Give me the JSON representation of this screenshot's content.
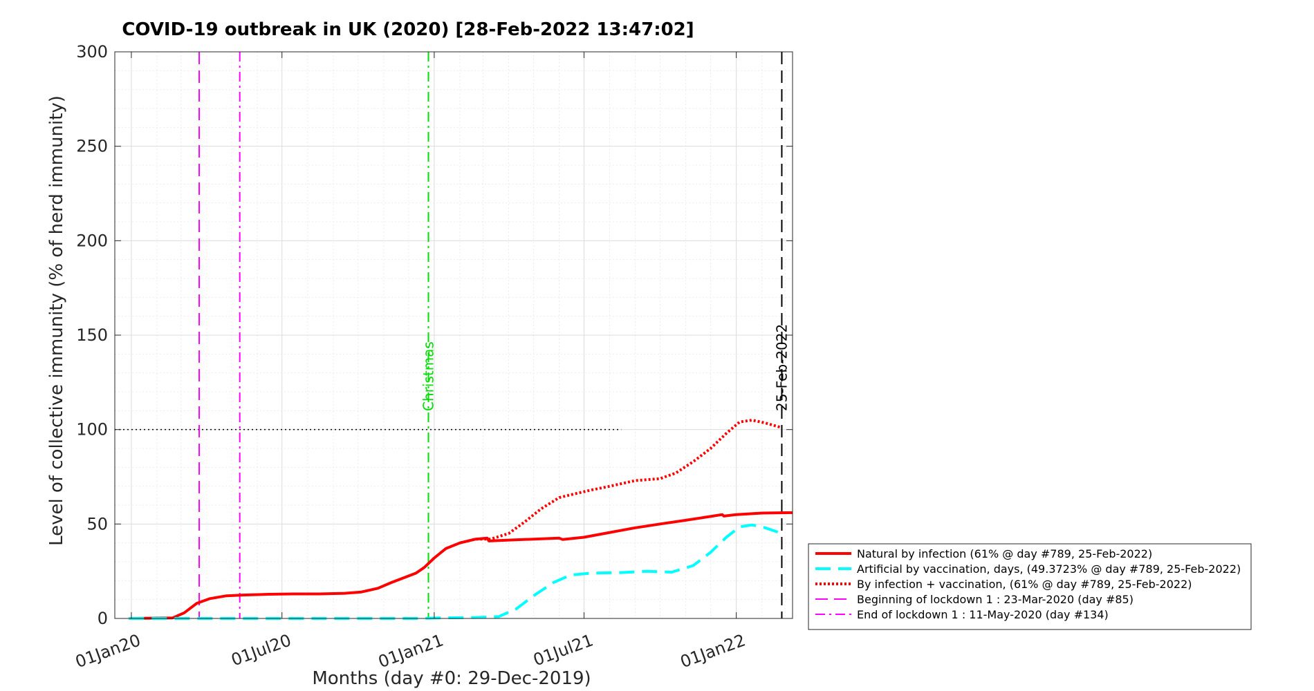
{
  "chart_data": {
    "type": "line",
    "title": "COVID-19 outbreak in UK (2020) [28-Feb-2022 13:47:02]",
    "xlabel": "Months (day #0: 29-Dec-2019)",
    "ylabel": "Level of collective immunity (% of herd immunity)",
    "xlim": [
      "2019-12-12",
      "2022-03-10"
    ],
    "ylim": [
      0,
      300
    ],
    "yticks": [
      0,
      50,
      100,
      150,
      200,
      250,
      300
    ],
    "xticks": [
      {
        "date": "2020-01-01",
        "label": "01Jan20"
      },
      {
        "date": "2020-07-01",
        "label": "01Jul20"
      },
      {
        "date": "2021-01-01",
        "label": "01Jan21"
      },
      {
        "date": "2021-07-01",
        "label": "01Jul21"
      },
      {
        "date": "2022-01-01",
        "label": "01Jan22"
      }
    ],
    "grid": true,
    "legend_position": "outside-right-bottom",
    "series": [
      {
        "name": "Natural by infection (61% @ day #789, 25-Feb-2022)",
        "color": "#ff0000",
        "style": "solid",
        "points": [
          [
            "2019-12-29",
            0
          ],
          [
            "2020-02-20",
            0.3
          ],
          [
            "2020-03-05",
            3
          ],
          [
            "2020-03-20",
            8
          ],
          [
            "2020-04-05",
            10.5
          ],
          [
            "2020-04-25",
            12
          ],
          [
            "2020-05-15",
            12.4
          ],
          [
            "2020-06-15",
            12.8
          ],
          [
            "2020-07-15",
            13
          ],
          [
            "2020-08-15",
            13
          ],
          [
            "2020-09-15",
            13.3
          ],
          [
            "2020-10-05",
            14
          ],
          [
            "2020-10-25",
            16
          ],
          [
            "2020-11-10",
            19
          ],
          [
            "2020-11-25",
            21.5
          ],
          [
            "2020-12-10",
            24
          ],
          [
            "2020-12-20",
            27
          ],
          [
            "2021-01-01",
            32
          ],
          [
            "2021-01-15",
            37
          ],
          [
            "2021-02-01",
            40
          ],
          [
            "2021-02-20",
            42
          ],
          [
            "2021-03-06",
            42.5
          ],
          [
            "2021-03-08",
            41
          ],
          [
            "2021-04-01",
            41.5
          ],
          [
            "2021-05-01",
            42
          ],
          [
            "2021-06-01",
            42.5
          ],
          [
            "2021-06-05",
            41.8
          ],
          [
            "2021-07-01",
            43
          ],
          [
            "2021-08-01",
            45.5
          ],
          [
            "2021-09-01",
            48
          ],
          [
            "2021-10-01",
            50
          ],
          [
            "2021-11-01",
            52
          ],
          [
            "2021-12-01",
            54
          ],
          [
            "2021-12-15",
            55
          ],
          [
            "2021-12-17",
            54.2
          ],
          [
            "2022-01-01",
            55
          ],
          [
            "2022-02-01",
            55.8
          ],
          [
            "2022-03-10",
            56
          ]
        ]
      },
      {
        "name": "Artificial by vaccination, days, (49.3723% @ day #789, 25-Feb-2022)",
        "color": "#00ffff",
        "style": "dashed",
        "points": [
          [
            "2019-12-29",
            0
          ],
          [
            "2020-12-10",
            0
          ],
          [
            "2021-01-10",
            0.3
          ],
          [
            "2021-02-20",
            0.5
          ],
          [
            "2021-03-20",
            1
          ],
          [
            "2021-04-10",
            5
          ],
          [
            "2021-05-01",
            12
          ],
          [
            "2021-05-25",
            19
          ],
          [
            "2021-06-15",
            23
          ],
          [
            "2021-07-10",
            24
          ],
          [
            "2021-08-15",
            24.3
          ],
          [
            "2021-09-15",
            25
          ],
          [
            "2021-10-15",
            24.5
          ],
          [
            "2021-11-10",
            28
          ],
          [
            "2021-12-01",
            35
          ],
          [
            "2021-12-20",
            43
          ],
          [
            "2022-01-05",
            48.5
          ],
          [
            "2022-01-20",
            49.5
          ],
          [
            "2022-02-05",
            48
          ],
          [
            "2022-02-25",
            45
          ]
        ]
      },
      {
        "name": "By infection + vaccination, (61% @ day #789, 25-Feb-2022)",
        "color": "#ff0000",
        "style": "dotted",
        "points": [
          [
            "2021-02-01",
            40
          ],
          [
            "2021-02-20",
            42
          ],
          [
            "2021-03-10",
            42
          ],
          [
            "2021-04-01",
            45
          ],
          [
            "2021-04-20",
            51
          ],
          [
            "2021-05-10",
            58
          ],
          [
            "2021-06-01",
            64
          ],
          [
            "2021-06-20",
            66
          ],
          [
            "2021-07-10",
            68
          ],
          [
            "2021-08-01",
            70
          ],
          [
            "2021-09-01",
            73
          ],
          [
            "2021-10-01",
            74
          ],
          [
            "2021-10-20",
            77
          ],
          [
            "2021-11-10",
            83
          ],
          [
            "2021-12-01",
            90
          ],
          [
            "2021-12-20",
            98
          ],
          [
            "2022-01-05",
            104
          ],
          [
            "2022-01-20",
            105
          ],
          [
            "2022-02-05",
            103.5
          ],
          [
            "2022-02-25",
            101
          ]
        ]
      },
      {
        "name": "Beginning of lockdown 1 : 23-Mar-2020 (day #85)",
        "color": "#ff00ff",
        "style": "dashed",
        "vline": "2020-03-23"
      },
      {
        "name": "End of lockdown 1 : 11-May-2020 (day #134)",
        "color": "#ff00ff",
        "style": "dashdot",
        "vline": "2020-05-11"
      }
    ],
    "reference_lines": [
      {
        "type": "hline",
        "y": 100,
        "from": "2019-12-12",
        "to": "2021-08-15",
        "color": "#000000",
        "style": "dotted"
      }
    ],
    "annotations": [
      {
        "text": "Christmas",
        "date": "2020-12-25",
        "color": "#00dd00",
        "style": "dashdot"
      },
      {
        "text": "25-Feb-2022",
        "date": "2022-02-25",
        "color": "#000000",
        "style": "dashed"
      }
    ]
  }
}
